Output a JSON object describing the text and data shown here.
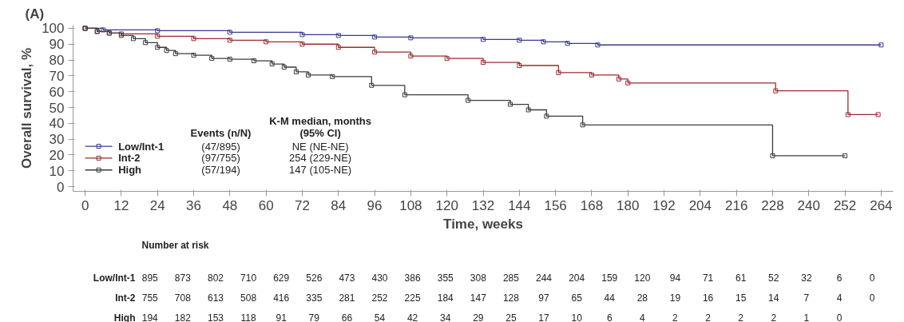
{
  "chart_data": {
    "type": "step",
    "title": "(A)",
    "xlabel": "Time, weeks",
    "ylabel": "Overall survival, %",
    "xlim": [
      -4,
      268
    ],
    "ylim": [
      -3,
      102
    ],
    "xticks": [
      0,
      12,
      24,
      36,
      48,
      60,
      72,
      84,
      96,
      108,
      120,
      132,
      144,
      156,
      168,
      180,
      192,
      204,
      216,
      228,
      240,
      252,
      264
    ],
    "yticks": [
      0,
      10,
      20,
      30,
      40,
      50,
      60,
      70,
      80,
      90,
      100
    ],
    "grid": false,
    "legend": "bottom left",
    "marker": "square",
    "line_style": "solid",
    "series": [
      {
        "name": "Low/Int-1",
        "color": "#3a3a8c",
        "x": [
          0,
          6,
          24,
          48,
          72,
          84,
          96,
          108,
          132,
          144,
          152,
          160,
          170,
          264
        ],
        "values": [
          100,
          99,
          98.5,
          97.5,
          96,
          95.5,
          94.5,
          94,
          93,
          92.5,
          91.5,
          90.5,
          89.5,
          89.5
        ]
      },
      {
        "name": "Int-2",
        "color": "#9b2d2d",
        "x": [
          0,
          4,
          8,
          12,
          24,
          36,
          48,
          60,
          72,
          84,
          96,
          108,
          120,
          132,
          144,
          157,
          168,
          177,
          180,
          229,
          253,
          263
        ],
        "values": [
          100,
          98,
          97,
          96.5,
          95,
          93.5,
          92.5,
          91.5,
          90,
          88,
          85,
          82.5,
          81,
          78.5,
          76.5,
          72,
          70.5,
          68,
          65.5,
          60.5,
          45.5,
          45.5
        ]
      },
      {
        "name": "High",
        "color": "#3c3c3c",
        "x": [
          0,
          4,
          8,
          12,
          16,
          20,
          24,
          27,
          30,
          36,
          42,
          48,
          56,
          62,
          66,
          70,
          74,
          82,
          95,
          106,
          127,
          141,
          147,
          153,
          165,
          228,
          252
        ],
        "values": [
          100,
          98,
          97,
          95.5,
          93.5,
          91,
          88,
          86,
          84,
          83,
          81,
          80.5,
          79.5,
          77.5,
          75.5,
          72.5,
          70.5,
          69.5,
          64,
          58,
          54.5,
          52,
          48.5,
          44.5,
          39,
          19.5,
          19.5
        ]
      }
    ],
    "annotations": [
      "Events (n/N)",
      "K-M median, months",
      "(95% CI)",
      "(47/895)",
      "(97/755)",
      "(57/194)",
      "NE (NE-NE)",
      "254 (229-NE)",
      "147 (105-NE)",
      "Number at risk",
      "Low/Int-1 895 873 802 710 629 526 473 430 386 355 308 285 244 204 159 120 94 71 61 52 32 6 0",
      "Int-2 755 708 613 508 416 335 281 252 225 184 147 128 97 65 44 28 19 16 15 14 7 4 0",
      "High 194 182 153 118 91 79 66 54 42 34 29 25 17 10 6 4 2 2 2 2 1 0"
    ]
  }
}
